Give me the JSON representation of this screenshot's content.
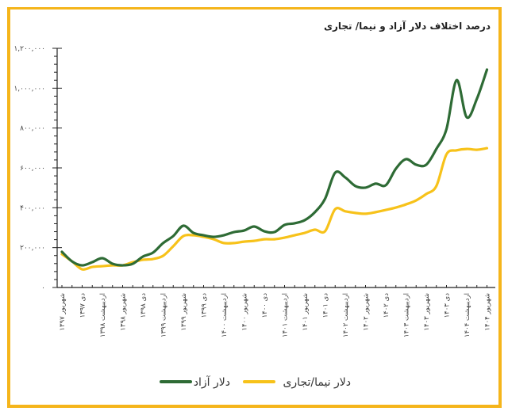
{
  "chart_data": {
    "type": "line",
    "title": "درصد اختلاف دلار آزاد و نیما/ تجاری",
    "xlabel": "",
    "ylabel": "",
    "ylim": [
      0,
      1200000
    ],
    "y_ticks": [
      0,
      200000,
      400000,
      600000,
      800000,
      1000000,
      1200000
    ],
    "y_tick_labels": [
      "۰",
      "۲۰۰,۰۰۰",
      "۴۰۰,۰۰۰",
      "۶۰۰,۰۰۰",
      "۸۰۰,۰۰۰",
      "۱,۰۰۰,۰۰۰",
      "۱,۲۰۰,۰۰۰"
    ],
    "grid": false,
    "legend_position": "bottom",
    "categories": [
      "شهریور ۱۳۹۷",
      "",
      "دی ۱۳۹۷",
      "",
      "اردیبهشت ۱۳۹۸",
      "",
      "شهریور ۱۳۹۸",
      "",
      "دی ۱۳۹۸",
      "",
      "اردیبهشت ۱۳۹۹",
      "",
      "شهریور ۱۳۹۹",
      "",
      "دی ۱۳۹۹",
      "",
      "اردیبهشت ۱۴۰۰",
      "",
      "شهریور ۱۴۰۰",
      "",
      "دی ۱۴۰۰",
      "",
      "اردیبهشت ۱۴۰۱",
      "",
      "شهریور ۱۴۰۱",
      "",
      "دی ۱۴۰۱",
      "",
      "اردیبهشت ۱۴۰۲",
      "",
      "شهریور ۱۴۰۲",
      "",
      "دی ۱۴۰۲",
      "",
      "اردیبهشت ۱۴۰۳",
      "",
      "شهریور ۱۴۰۳",
      "",
      "دی ۱۴۰۳",
      "",
      "اردیبهشت ۱۴۰۴",
      "",
      "شهریور ۱۴۰۴"
    ],
    "series": [
      {
        "name": "دلار آزاد",
        "color": "#2e6b35",
        "values": [
          179000,
          131000,
          111000,
          127000,
          147000,
          119000,
          111000,
          119000,
          155000,
          175000,
          223000,
          258000,
          310000,
          274000,
          262000,
          254000,
          262000,
          278000,
          286000,
          306000,
          282000,
          278000,
          314000,
          322000,
          338000,
          378000,
          445000,
          576000,
          552000,
          509000,
          501000,
          521000,
          513000,
          596000,
          644000,
          616000,
          616000,
          695000,
          795000,
          1040000,
          854000,
          946000,
          1093000
        ]
      },
      {
        "name": "دلار نیما/تجاری",
        "color": "#f7c21a",
        "values": [
          167000,
          131000,
          91000,
          103000,
          107000,
          111000,
          111000,
          127000,
          139000,
          143000,
          159000,
          207000,
          258000,
          262000,
          254000,
          242000,
          223000,
          223000,
          230000,
          234000,
          242000,
          242000,
          250000,
          262000,
          274000,
          290000,
          282000,
          393000,
          382000,
          374000,
          370000,
          378000,
          389000,
          401000,
          417000,
          437000,
          469000,
          509000,
          668000,
          688000,
          695000,
          691000,
          699000
        ]
      }
    ]
  },
  "frame_color": "#f5b51b"
}
